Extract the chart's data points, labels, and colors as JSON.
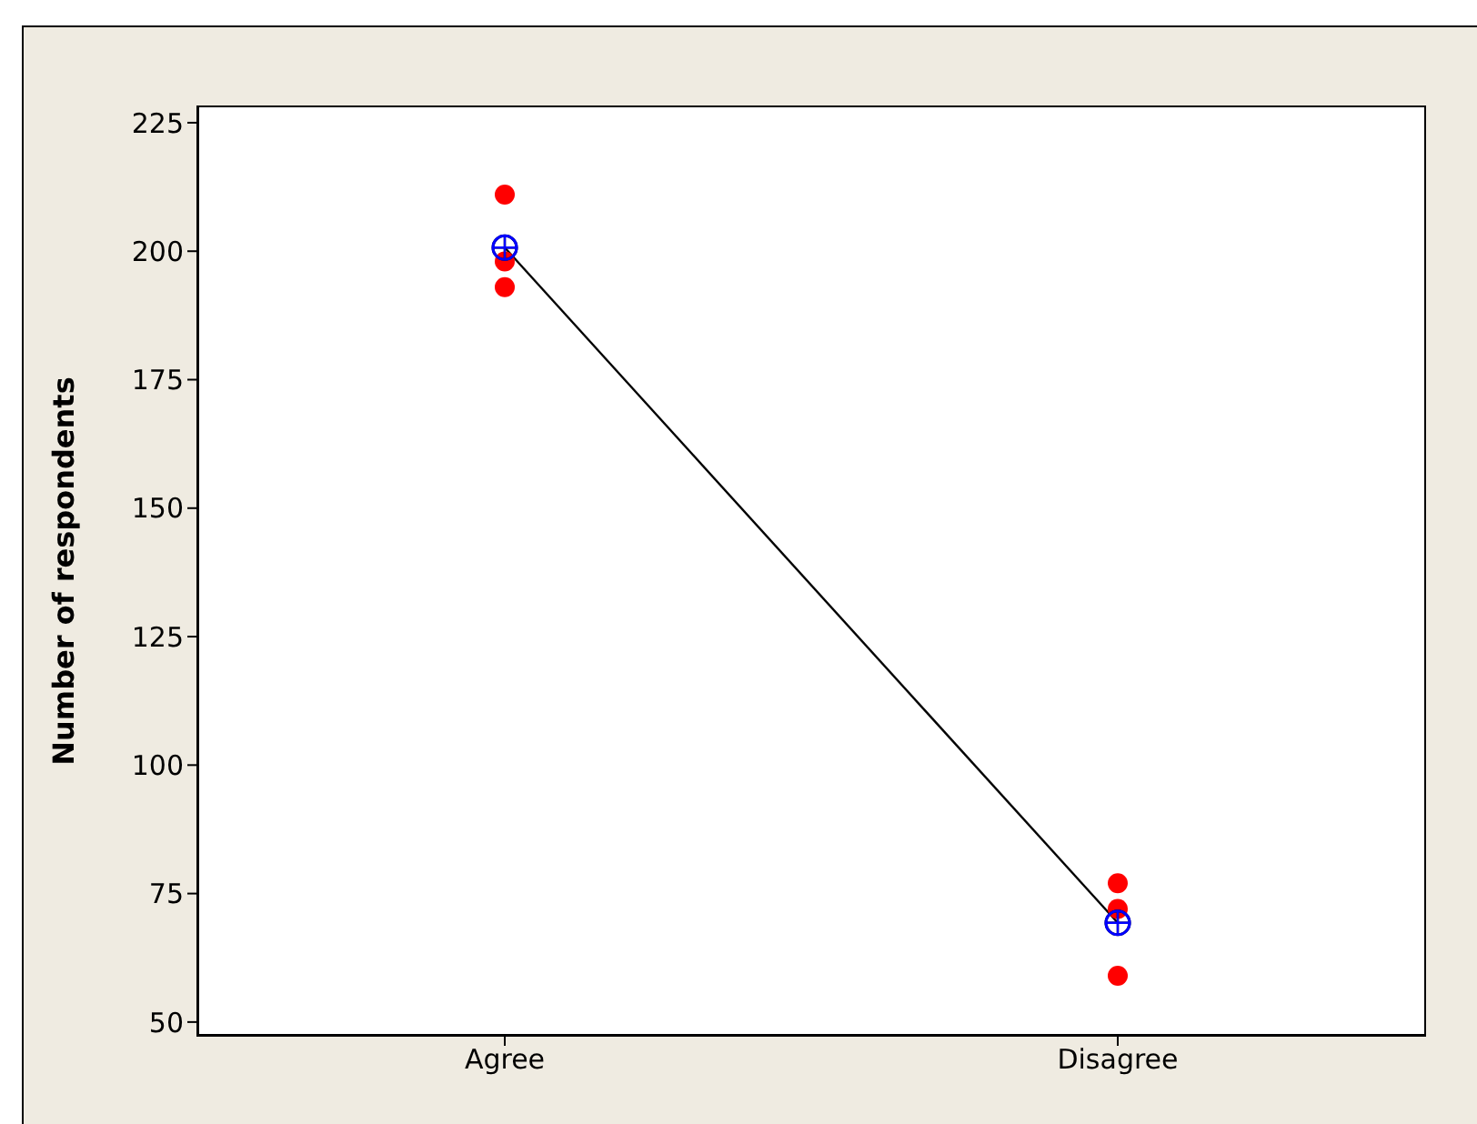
{
  "chart_data": {
    "type": "scatter",
    "ylabel": "Number of respondents",
    "categories": [
      "Agree",
      "Disagree"
    ],
    "series": [
      {
        "type": "scatter",
        "color": "#ff0000",
        "marker": "circle",
        "x": [
          "Agree",
          "Agree",
          "Agree",
          "Disagree",
          "Disagree",
          "Disagree"
        ],
        "values": [
          211,
          198,
          193,
          77,
          72,
          59
        ]
      },
      {
        "type": "line",
        "color": "#000000",
        "marker": "circle",
        "x": [
          "Agree",
          "Disagree"
        ],
        "values": [
          200.7,
          69.3
        ]
      },
      {
        "type": "scatter",
        "color": "#0000ff",
        "marker": "circle",
        "x": [
          "Agree",
          "Disagree"
        ],
        "values": [
          200.7,
          69.3
        ]
      }
    ],
    "ylim": [
      47.5,
      228
    ],
    "yticks": [
      50,
      75,
      100,
      125,
      150,
      175,
      200,
      225
    ],
    "grid": false,
    "legend": false
  }
}
